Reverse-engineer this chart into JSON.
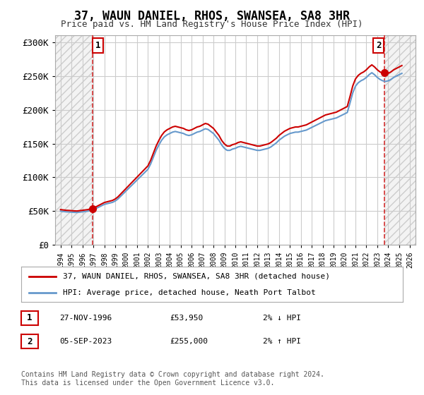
{
  "title": "37, WAUN DANIEL, RHOS, SWANSEA, SA8 3HR",
  "subtitle": "Price paid vs. HM Land Registry's House Price Index (HPI)",
  "ylabel": "",
  "background_color": "#ffffff",
  "plot_background": "#ffffff",
  "grid_color": "#cccccc",
  "hatch_color": "#dddddd",
  "red_line_color": "#cc0000",
  "blue_line_color": "#6699cc",
  "sale1_year": 1996.9,
  "sale1_price": 53950,
  "sale1_label": "1",
  "sale2_year": 2023.67,
  "sale2_price": 255000,
  "sale2_label": "2",
  "xmin": 1993.5,
  "xmax": 2026.5,
  "ymin": 0,
  "ymax": 310000,
  "yticks": [
    0,
    50000,
    100000,
    150000,
    200000,
    250000,
    300000
  ],
  "ytick_labels": [
    "£0",
    "£50K",
    "£100K",
    "£150K",
    "£200K",
    "£250K",
    "£300K"
  ],
  "legend_line1": "37, WAUN DANIEL, RHOS, SWANSEA, SA8 3HR (detached house)",
  "legend_line2": "HPI: Average price, detached house, Neath Port Talbot",
  "table_row1_num": "1",
  "table_row1_date": "27-NOV-1996",
  "table_row1_price": "£53,950",
  "table_row1_hpi": "2% ↓ HPI",
  "table_row2_num": "2",
  "table_row2_date": "05-SEP-2023",
  "table_row2_price": "£255,000",
  "table_row2_hpi": "2% ↑ HPI",
  "footer": "Contains HM Land Registry data © Crown copyright and database right 2024.\nThis data is licensed under the Open Government Licence v3.0.",
  "hpi_data_x": [
    1994,
    1994.25,
    1994.5,
    1994.75,
    1995,
    1995.25,
    1995.5,
    1995.75,
    1996,
    1996.25,
    1996.5,
    1996.75,
    1997,
    1997.25,
    1997.5,
    1997.75,
    1998,
    1998.25,
    1998.5,
    1998.75,
    1999,
    1999.25,
    1999.5,
    1999.75,
    2000,
    2000.25,
    2000.5,
    2000.75,
    2001,
    2001.25,
    2001.5,
    2001.75,
    2002,
    2002.25,
    2002.5,
    2002.75,
    2003,
    2003.25,
    2003.5,
    2003.75,
    2004,
    2004.25,
    2004.5,
    2004.75,
    2005,
    2005.25,
    2005.5,
    2005.75,
    2006,
    2006.25,
    2006.5,
    2006.75,
    2007,
    2007.25,
    2007.5,
    2007.75,
    2008,
    2008.25,
    2008.5,
    2008.75,
    2009,
    2009.25,
    2009.5,
    2009.75,
    2010,
    2010.25,
    2010.5,
    2010.75,
    2011,
    2011.25,
    2011.5,
    2011.75,
    2012,
    2012.25,
    2012.5,
    2012.75,
    2013,
    2013.25,
    2013.5,
    2013.75,
    2014,
    2014.25,
    2014.5,
    2014.75,
    2015,
    2015.25,
    2015.5,
    2015.75,
    2016,
    2016.25,
    2016.5,
    2016.75,
    2017,
    2017.25,
    2017.5,
    2017.75,
    2018,
    2018.25,
    2018.5,
    2018.75,
    2019,
    2019.25,
    2019.5,
    2019.75,
    2020,
    2020.25,
    2020.5,
    2020.75,
    2021,
    2021.25,
    2021.5,
    2021.75,
    2022,
    2022.25,
    2022.5,
    2022.75,
    2023,
    2023.25,
    2023.5,
    2023.75,
    2024,
    2024.25,
    2024.5,
    2024.75,
    2025,
    2025.25
  ],
  "hpi_data_y": [
    50000,
    49500,
    49000,
    48800,
    48500,
    48200,
    48000,
    48500,
    49000,
    49500,
    50000,
    51000,
    52000,
    54000,
    56000,
    58000,
    60000,
    61000,
    62000,
    63000,
    65000,
    68000,
    72000,
    76000,
    80000,
    84000,
    88000,
    92000,
    96000,
    100000,
    104000,
    108000,
    112000,
    120000,
    130000,
    140000,
    148000,
    155000,
    160000,
    163000,
    165000,
    167000,
    168000,
    167000,
    166000,
    165000,
    163000,
    162000,
    163000,
    165000,
    167000,
    168000,
    170000,
    172000,
    171000,
    168000,
    165000,
    160000,
    155000,
    148000,
    143000,
    140000,
    140000,
    142000,
    143000,
    145000,
    146000,
    145000,
    144000,
    143000,
    142000,
    141000,
    140000,
    140000,
    141000,
    142000,
    143000,
    145000,
    148000,
    151000,
    155000,
    158000,
    161000,
    163000,
    165000,
    166000,
    167000,
    167000,
    168000,
    169000,
    170000,
    172000,
    174000,
    176000,
    178000,
    180000,
    182000,
    184000,
    185000,
    186000,
    187000,
    188000,
    190000,
    192000,
    194000,
    196000,
    210000,
    225000,
    235000,
    240000,
    243000,
    245000,
    248000,
    252000,
    255000,
    252000,
    248000,
    245000,
    243000,
    242000,
    243000,
    245000,
    248000,
    250000,
    252000,
    254000
  ]
}
